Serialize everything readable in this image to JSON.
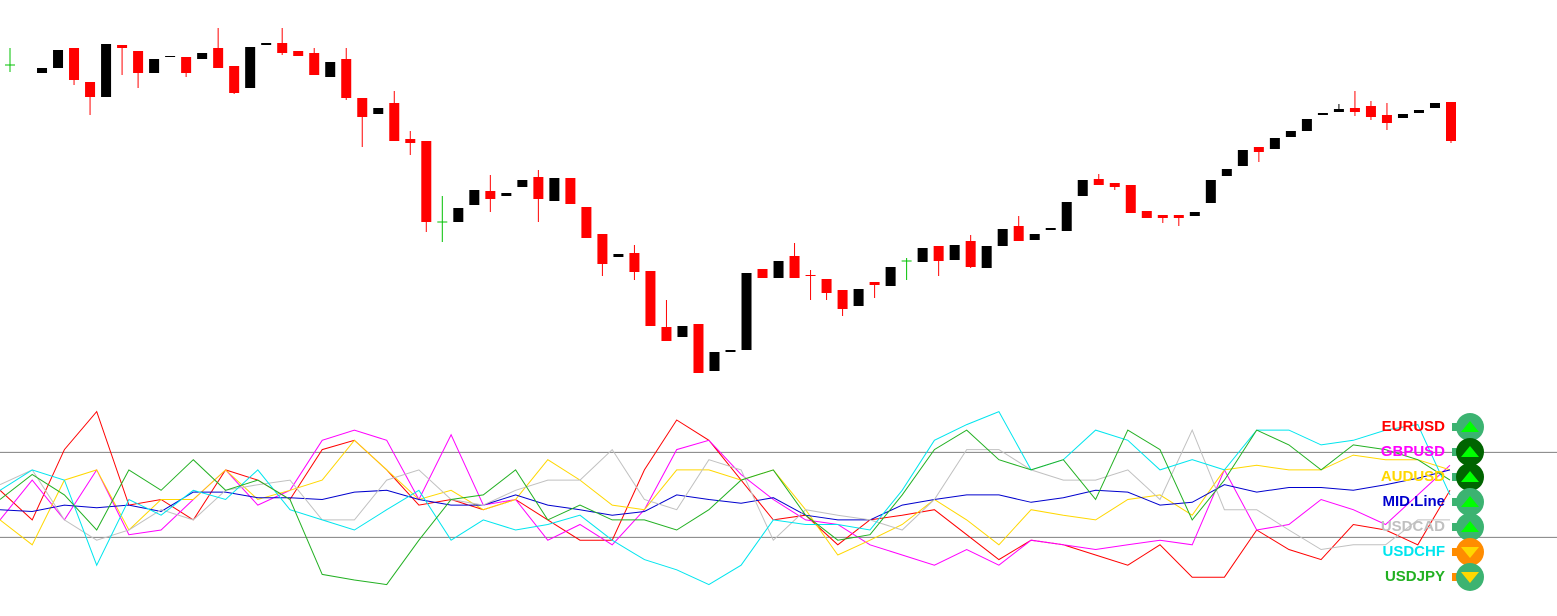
{
  "chart_data": [
    {
      "type": "candlestick",
      "ylim": [
        0,
        400
      ],
      "up_color": "#000000",
      "down_color": "#ff0000",
      "doji_color": "#00c000",
      "open": [
        335,
        null,
        327,
        332,
        352,
        318,
        303,
        355,
        349,
        327,
        343,
        343,
        341,
        352,
        334,
        312,
        355,
        357,
        349,
        347,
        323,
        341,
        302,
        286,
        297,
        261,
        259,
        178,
        178,
        195,
        209,
        204,
        213,
        223,
        199,
        222,
        193,
        166,
        143,
        147,
        129,
        73,
        63,
        76,
        29,
        48,
        50,
        131,
        122,
        144,
        125,
        121,
        110,
        94,
        118,
        114,
        139,
        138,
        154,
        140,
        159,
        132,
        154,
        174,
        160,
        170,
        169,
        204,
        221,
        217,
        215,
        189,
        185,
        185,
        184,
        197,
        224,
        234,
        253,
        251,
        263,
        269,
        285,
        288,
        292,
        294,
        285,
        282,
        287,
        292,
        298
      ],
      "high": [
        352,
        null,
        332,
        350,
        352,
        318,
        356,
        355,
        349,
        341,
        344,
        343,
        347,
        372,
        334,
        353,
        357,
        372,
        349,
        352,
        338,
        352,
        302,
        292,
        309,
        269,
        259,
        204,
        192,
        210,
        225,
        207,
        220,
        230,
        222,
        222,
        193,
        166,
        146,
        155,
        129,
        100,
        74,
        76,
        48,
        50,
        127,
        131,
        139,
        157,
        130,
        121,
        110,
        111,
        118,
        133,
        142,
        152,
        154,
        155,
        165,
        154,
        171,
        184,
        166,
        172,
        198,
        220,
        226,
        217,
        215,
        189,
        185,
        185,
        188,
        220,
        231,
        250,
        253,
        262,
        269,
        281,
        287,
        296,
        309,
        299,
        297,
        286,
        290,
        297,
        298
      ],
      "low": [
        328,
        null,
        327,
        332,
        315,
        285,
        303,
        325,
        312,
        327,
        343,
        323,
        341,
        332,
        306,
        312,
        355,
        345,
        344,
        325,
        323,
        300,
        253,
        286,
        259,
        245,
        168,
        158,
        178,
        195,
        188,
        204,
        213,
        178,
        199,
        196,
        162,
        124,
        143,
        120,
        74,
        59,
        63,
        27,
        29,
        48,
        50,
        122,
        122,
        122,
        100,
        100,
        84,
        94,
        102,
        114,
        120,
        138,
        124,
        140,
        132,
        132,
        154,
        159,
        160,
        170,
        169,
        204,
        215,
        210,
        187,
        182,
        177,
        174,
        184,
        197,
        224,
        234,
        238,
        251,
        263,
        269,
        285,
        288,
        284,
        280,
        270,
        282,
        287,
        292,
        257
      ],
      "close": [
        335,
        null,
        332,
        350,
        320,
        303,
        356,
        352,
        327,
        341,
        344,
        327,
        347,
        332,
        307,
        353,
        357,
        347,
        344,
        325,
        338,
        302,
        283,
        292,
        259,
        257,
        178,
        178,
        192,
        210,
        201,
        207,
        220,
        201,
        222,
        196,
        162,
        136,
        146,
        128,
        74,
        59,
        74,
        27,
        48,
        50,
        127,
        122,
        139,
        122,
        124,
        107,
        91,
        111,
        115,
        133,
        139,
        152,
        139,
        155,
        133,
        154,
        171,
        159,
        166,
        172,
        198,
        220,
        215,
        213,
        187,
        182,
        182,
        182,
        188,
        220,
        231,
        250,
        248,
        262,
        269,
        281,
        287,
        291,
        288,
        283,
        277,
        286,
        290,
        297,
        259
      ]
    },
    {
      "type": "line",
      "ylim": [
        -105,
        100
      ],
      "levels": [
        46,
        -46
      ],
      "level_color": "#808080",
      "series": [
        {
          "name": "EURUSD",
          "color": "#ff0000",
          "signal": {
            "direction": "up",
            "color": "#3cb371"
          },
          "values": [
            5,
            -27,
            49,
            90,
            -11,
            -5,
            -27,
            27,
            16,
            -5,
            49,
            59,
            27,
            -11,
            -5,
            -16,
            -5,
            -27,
            -49,
            -49,
            27,
            81,
            59,
            16,
            -27,
            -22,
            -54,
            -27,
            -22,
            -16,
            -43,
            -70,
            -49,
            -54,
            -65,
            -76,
            -54,
            -89,
            -89,
            -38,
            -59,
            -70,
            -32,
            -38,
            -54,
            5
          ]
        },
        {
          "name": "GBPUSD",
          "color": "#ff00ff",
          "signal": {
            "direction": "up",
            "color": "#006400"
          },
          "values": [
            -27,
            16,
            -27,
            27,
            -43,
            -38,
            -5,
            27,
            -11,
            5,
            59,
            70,
            59,
            -5,
            65,
            -11,
            -5,
            -49,
            -32,
            -54,
            -16,
            49,
            59,
            22,
            -5,
            -27,
            -32,
            -54,
            -65,
            -76,
            -59,
            -76,
            -49,
            -54,
            -59,
            -54,
            -49,
            -54,
            27,
            -38,
            -32,
            -5,
            -16,
            -32,
            0,
            32
          ]
        },
        {
          "name": "AUDUSD",
          "color": "#ffd700",
          "signal": {
            "direction": "up",
            "color": "#006400"
          },
          "values": [
            -27,
            -54,
            16,
            27,
            -38,
            -5,
            -5,
            27,
            -5,
            5,
            16,
            59,
            27,
            -5,
            5,
            -16,
            -5,
            38,
            16,
            -11,
            -16,
            27,
            27,
            16,
            27,
            -16,
            -65,
            -49,
            -32,
            -5,
            -27,
            -54,
            -16,
            -22,
            -27,
            -5,
            0,
            -22,
            27,
            32,
            27,
            27,
            43,
            38,
            38,
            27
          ]
        },
        {
          "name": "MID.Line",
          "color": "#0000cd",
          "signal": {
            "direction": "up",
            "color": "#3cb371"
          },
          "values": [
            -16,
            -18,
            -11,
            -14,
            -11,
            -18,
            3,
            3,
            -3,
            -3,
            -5,
            3,
            5,
            -5,
            -11,
            -11,
            0,
            -11,
            -16,
            -22,
            -18,
            0,
            -5,
            -9,
            -3,
            -22,
            -27,
            -27,
            -11,
            -5,
            0,
            0,
            -8,
            -3,
            5,
            3,
            -11,
            -8,
            11,
            3,
            8,
            8,
            5,
            11,
            18,
            27
          ]
        },
        {
          "name": "USDCAD",
          "color": "#c0c0c0",
          "signal": {
            "direction": "up",
            "color": "#3cb371"
          },
          "values": [
            11,
            27,
            -27,
            -49,
            -38,
            -16,
            -27,
            5,
            11,
            16,
            -27,
            -27,
            16,
            27,
            -5,
            -11,
            5,
            16,
            16,
            49,
            -5,
            -16,
            38,
            27,
            -49,
            -16,
            -22,
            -27,
            -38,
            -5,
            49,
            49,
            27,
            16,
            16,
            27,
            -5,
            70,
            -16,
            -16,
            -38,
            -59,
            -54,
            -54,
            -27,
            -27
          ]
        },
        {
          "name": "USDCHF",
          "color": "#00e5ee",
          "signal": {
            "direction": "down",
            "color": "#ff8c00"
          },
          "values": [
            5,
            27,
            16,
            -76,
            -5,
            -22,
            5,
            -5,
            27,
            -16,
            -27,
            -38,
            -16,
            5,
            -49,
            -27,
            -38,
            -32,
            -22,
            -49,
            -70,
            -81,
            -97,
            -76,
            -27,
            -32,
            -32,
            -38,
            5,
            59,
            76,
            90,
            27,
            38,
            70,
            59,
            27,
            38,
            27,
            70,
            70,
            54,
            59,
            70,
            76,
            0
          ]
        },
        {
          "name": "USDJPY",
          "color": "#22b022",
          "signal": {
            "direction": "down",
            "color": "#3cb371"
          },
          "values": [
            -5,
            22,
            0,
            -38,
            27,
            5,
            38,
            5,
            16,
            -5,
            -86,
            -92,
            -97,
            -49,
            -5,
            0,
            27,
            -27,
            -11,
            -27,
            -27,
            -38,
            -16,
            16,
            27,
            -22,
            -49,
            -43,
            0,
            49,
            70,
            38,
            27,
            38,
            -5,
            70,
            49,
            -27,
            16,
            70,
            54,
            27,
            54,
            49,
            38,
            16
          ]
        }
      ]
    }
  ]
}
